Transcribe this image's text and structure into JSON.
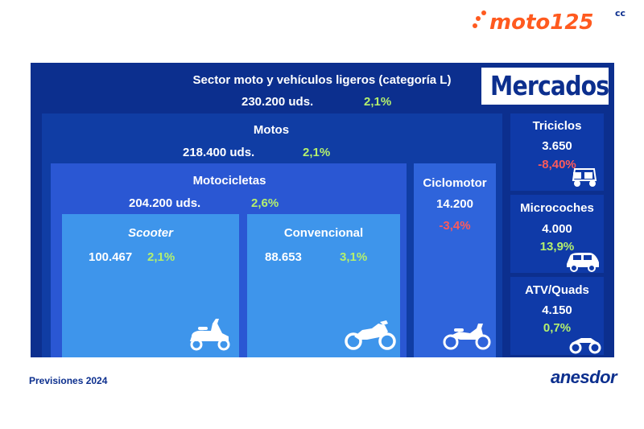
{
  "brand": {
    "logo_text": "moto125",
    "logo_suffix": "cc",
    "footer_brand": "anesdor"
  },
  "badge": "Mercados",
  "footer_note": "Previsiones 2024",
  "colors": {
    "navy": "#0c2f8e",
    "blue_mid": "#103da4",
    "blue_light": "#2a57d3",
    "sky": "#3e95eb",
    "positive": "#b4f06e",
    "negative": "#ff5a5a",
    "logo_orange": "#ff5a1f"
  },
  "sector": {
    "title": "Sector moto y vehículos ligeros (categoría L)",
    "units": "230.200 uds.",
    "change": "2,1%"
  },
  "motos": {
    "title": "Motos",
    "units": "218.400 uds.",
    "change": "2,1%"
  },
  "motocicletas": {
    "title": "Motocicletas",
    "units": "204.200 uds.",
    "change": "2,6%"
  },
  "scooter": {
    "title": "Scooter",
    "units": "100.467",
    "change": "2,1%",
    "icon": "scooter-icon"
  },
  "convencional": {
    "title": "Convencional",
    "units": "88.653",
    "change": "3,1%",
    "icon": "sport-motorcycle-icon"
  },
  "ciclomotor": {
    "title": "Ciclomotor",
    "units": "14.200",
    "change": "-3,4%",
    "icon": "moped-icon"
  },
  "triciclos": {
    "title": "Triciclos",
    "units": "3.650",
    "change": "-8,40%",
    "icon": "tricycle-icon"
  },
  "microcoches": {
    "title": "Microcoches",
    "units": "4.000",
    "change": "13,9%",
    "icon": "microcar-icon"
  },
  "atv": {
    "title": "ATV/Quads",
    "units": "4.150",
    "change": "0,7%",
    "icon": "quad-icon"
  }
}
